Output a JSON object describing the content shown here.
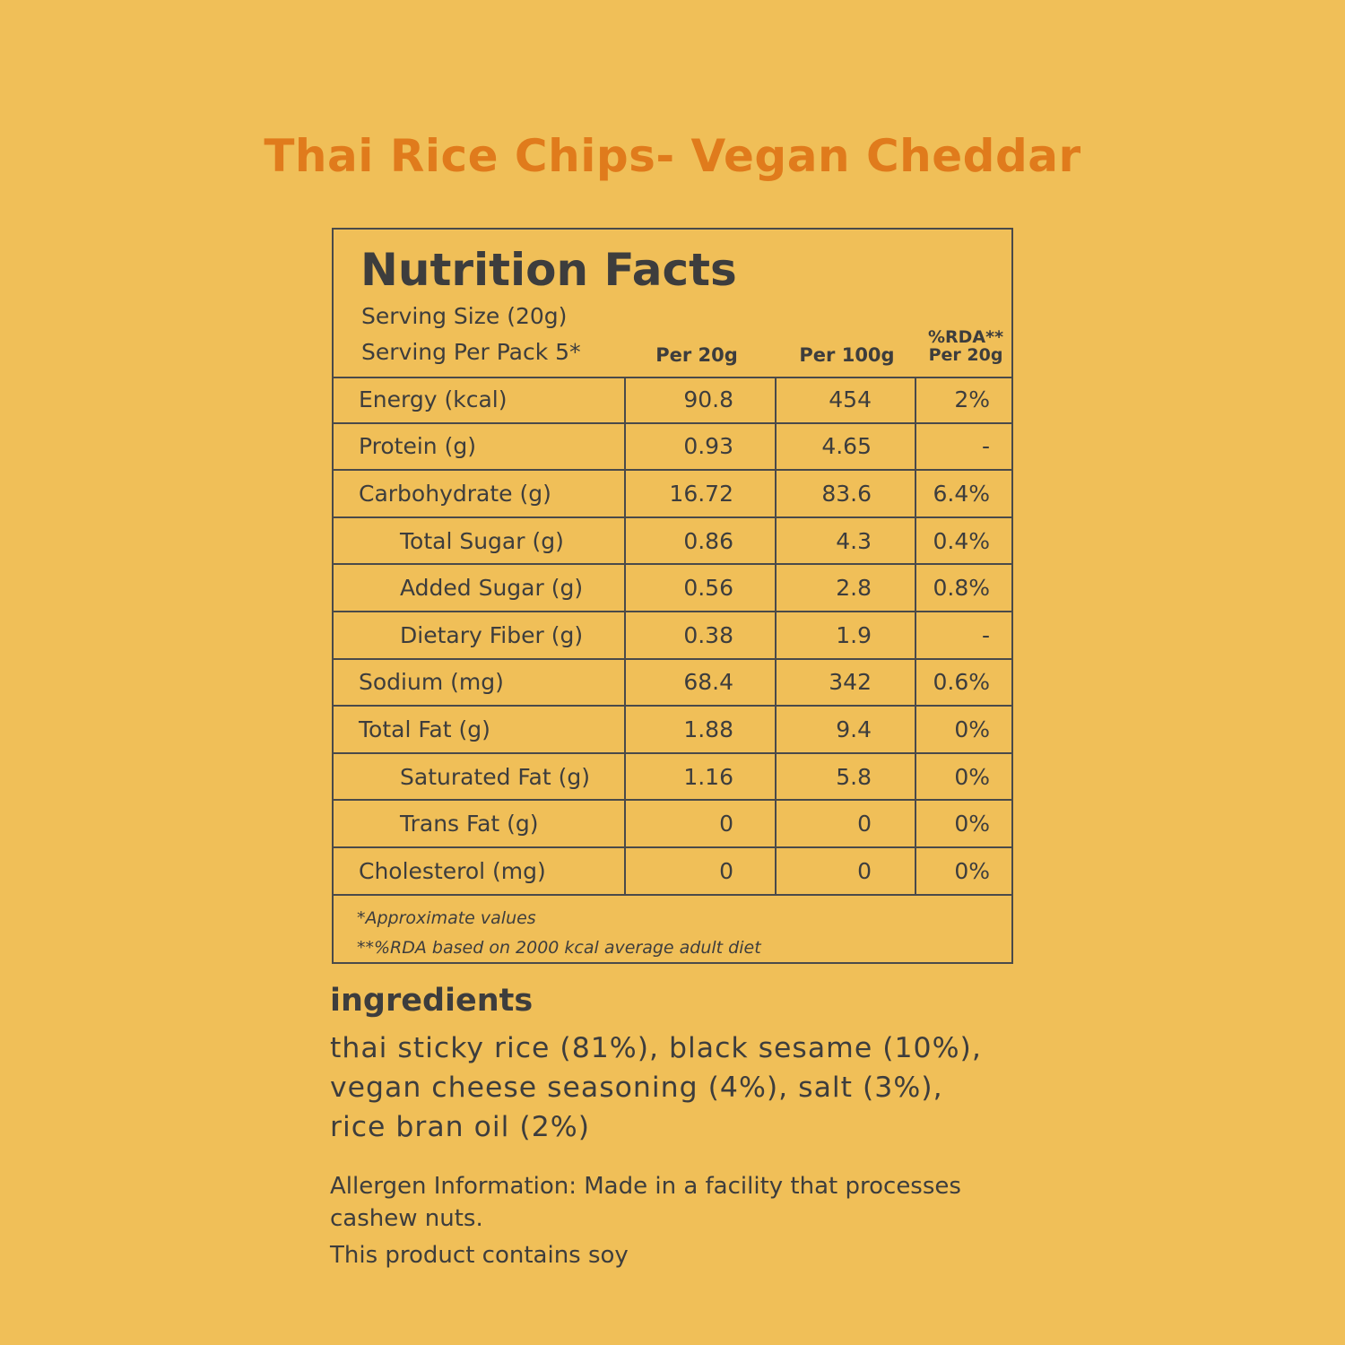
{
  "title": "Thai Rice Chips- Vegan Cheddar",
  "facts": {
    "heading": "Nutrition Facts",
    "serving_size": "Serving Size (20g)",
    "serving_per_pack": "Serving Per Pack 5*",
    "col_per20": "Per 20g",
    "col_per100": "Per 100g",
    "col_rda_line1": "%RDA**",
    "col_rda_line2": "Per 20g",
    "rows": [
      {
        "label": "Energy (kcal)",
        "per20": "90.8",
        "per100": "454",
        "rda": "2%"
      },
      {
        "label": "Protein (g)",
        "per20": "0.93",
        "per100": "4.65",
        "rda": "-"
      },
      {
        "label": "Carbohydrate (g)",
        "per20": "16.72",
        "per100": "83.6",
        "rda": "6.4%"
      },
      {
        "label": "Total Sugar (g)",
        "per20": "0.86",
        "per100": "4.3",
        "rda": "0.4%"
      },
      {
        "label": "Added Sugar (g)",
        "per20": "0.56",
        "per100": "2.8",
        "rda": "0.8%"
      },
      {
        "label": "Dietary Fiber (g)",
        "per20": "0.38",
        "per100": "1.9",
        "rda": "-"
      },
      {
        "label": "Sodium (mg)",
        "per20": "68.4",
        "per100": "342",
        "rda": "0.6%"
      },
      {
        "label": "Total Fat (g)",
        "per20": "1.88",
        "per100": "9.4",
        "rda": "0%"
      },
      {
        "label": "Saturated Fat (g)",
        "per20": "1.16",
        "per100": "5.8",
        "rda": "0%"
      },
      {
        "label": "Trans Fat (g)",
        "per20": "0",
        "per100": "0",
        "rda": "0%"
      },
      {
        "label": "Cholesterol (mg)",
        "per20": "0",
        "per100": "0",
        "rda": "0%"
      }
    ],
    "footnote1": "*Approximate values",
    "footnote2": "**%RDA based on 2000 kcal average adult diet"
  },
  "ingredients": {
    "heading": "ingredients",
    "line1": "thai sticky rice (81%), black sesame (10%),",
    "line2": "vegan cheese seasoning (4%), salt (3%),",
    "line3": "rice bran oil (2%)"
  },
  "allergen": {
    "line1": "Allergen Information: Made in a facility that processes",
    "line2": "cashew nuts.",
    "soy": "This product contains soy"
  },
  "colors": {
    "background": "#f0bf58",
    "title": "#e07b1c",
    "text": "#3d3d3d"
  }
}
